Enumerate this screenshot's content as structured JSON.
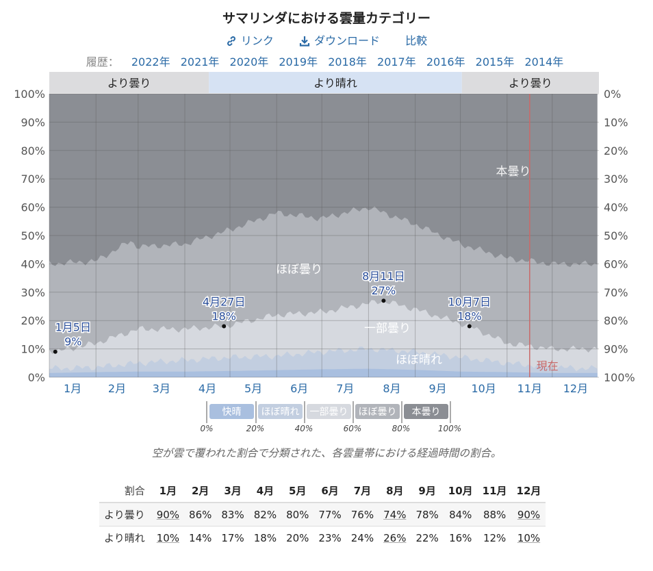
{
  "header": {
    "title": "サマリンダにおける雲量カテゴリー",
    "link_label": "リンク",
    "download_label": "ダウンロード",
    "compare_label": "比較",
    "history_label": "履歴：",
    "years": [
      "2022年",
      "2021年",
      "2020年",
      "2019年",
      "2018年",
      "2017年",
      "2016年",
      "2015年",
      "2014年"
    ]
  },
  "chart_data": {
    "type": "area",
    "months": [
      "1月",
      "2月",
      "3月",
      "4月",
      "5月",
      "6月",
      "7月",
      "8月",
      "9月",
      "10月",
      "11月",
      "12月"
    ],
    "y_left_ticks": [
      "0%",
      "10%",
      "20%",
      "30%",
      "40%",
      "50%",
      "60%",
      "70%",
      "80%",
      "90%",
      "100%"
    ],
    "y_right_ticks": [
      "100%",
      "90%",
      "80%",
      "70%",
      "60%",
      "50%",
      "40%",
      "30%",
      "20%",
      "10%",
      "0%"
    ],
    "ylim": [
      0,
      100
    ],
    "season_bands": [
      {
        "label": "より曇り",
        "start_day": 1,
        "end_day": 107
      },
      {
        "label": "より晴れ",
        "start_day": 107,
        "end_day": 275
      },
      {
        "label": "より曇り",
        "start_day": 275,
        "end_day": 366
      }
    ],
    "series": [
      {
        "name": "快晴",
        "color": "#a9bfdf",
        "x": [
          1,
          32,
          60,
          91,
          121,
          152,
          182,
          213,
          244,
          274,
          305,
          335,
          365
        ],
        "values": [
          1.5,
          1.8,
          2.0,
          2.0,
          2.2,
          2.5,
          2.8,
          3.0,
          2.6,
          2.0,
          1.8,
          1.5,
          1.5
        ]
      },
      {
        "name": "ほぼ晴れ",
        "color": "#c2cee0",
        "x": [
          1,
          32,
          60,
          91,
          121,
          152,
          182,
          213,
          244,
          274,
          305,
          335,
          365
        ],
        "values": [
          3,
          3.5,
          5,
          6,
          7,
          7.5,
          9,
          10,
          9,
          7,
          5,
          3.5,
          3
        ]
      },
      {
        "name": "一部曇り",
        "color": "#d6d9df",
        "x": [
          1,
          5,
          32,
          60,
          91,
          117,
          152,
          182,
          223,
          244,
          280,
          305,
          335,
          365
        ],
        "values": [
          10,
          9,
          12,
          17,
          17,
          18,
          22,
          23,
          27,
          24,
          18,
          12,
          10,
          10
        ]
      },
      {
        "name": "ほぼ曇り",
        "color": "#b1b4ba",
        "x": [
          1,
          32,
          55,
          60,
          91,
          121,
          152,
          182,
          213,
          244,
          274,
          305,
          335,
          365
        ],
        "values": [
          40,
          41,
          48,
          46,
          47,
          52,
          58,
          56,
          60,
          54,
          47,
          42,
          40,
          40
        ]
      },
      {
        "name": "本曇り",
        "color": "#8b8e94",
        "x": [
          1,
          365
        ],
        "values": [
          100,
          100
        ]
      }
    ],
    "annotations": [
      {
        "date": "1月5日",
        "value": "9%",
        "day": 5,
        "pct": 9
      },
      {
        "date": "4月27日",
        "value": "18%",
        "day": 117,
        "pct": 18
      },
      {
        "date": "8月11日",
        "value": "27%",
        "day": 223,
        "pct": 27
      },
      {
        "date": "10月7日",
        "value": "18%",
        "day": 280,
        "pct": 18
      }
    ],
    "band_labels": {
      "overcast": "本曇り",
      "mostly_cloudy": "ほぼ曇り",
      "partly_cloudy": "一部曇り",
      "mostly_clear": "ほぼ晴れ"
    },
    "now": {
      "label": "現在",
      "day": 320
    },
    "legend": {
      "items": [
        "快晴",
        "ほぼ晴れ",
        "一部曇り",
        "ほぼ曇り",
        "本曇り"
      ],
      "colors": [
        "#a9bfdf",
        "#c2cee0",
        "#d6d9df",
        "#b1b4ba",
        "#8b8e94"
      ],
      "ticks": [
        "0%",
        "20%",
        "40%",
        "60%",
        "80%",
        "100%"
      ]
    }
  },
  "caption": "空が雲で覆われた割合で分類された、各雲量帯における経過時間の割合。",
  "table": {
    "corner_label": "割合",
    "months": [
      "1月",
      "2月",
      "3月",
      "4月",
      "5月",
      "6月",
      "7月",
      "8月",
      "9月",
      "10月",
      "11月",
      "12月"
    ],
    "rows": [
      {
        "label": "より曇り",
        "values": [
          "90%",
          "86%",
          "83%",
          "82%",
          "80%",
          "77%",
          "76%",
          "74%",
          "78%",
          "84%",
          "88%",
          "90%"
        ],
        "underlined": [
          0,
          7,
          11
        ]
      },
      {
        "label": "より晴れ",
        "values": [
          "10%",
          "14%",
          "17%",
          "18%",
          "20%",
          "23%",
          "24%",
          "26%",
          "22%",
          "16%",
          "12%",
          "10%"
        ],
        "underlined": [
          0,
          7,
          11
        ]
      }
    ]
  }
}
